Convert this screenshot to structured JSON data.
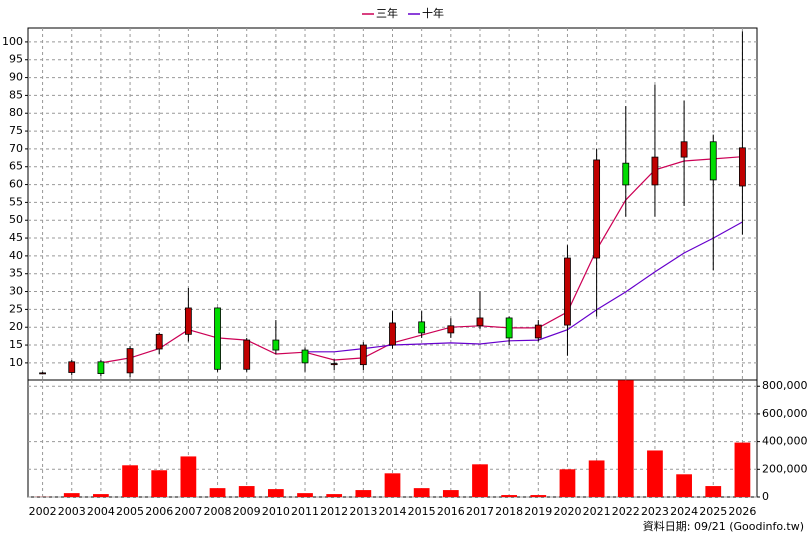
{
  "chart_data": {
    "type": "candlestick",
    "categories": [
      "2002",
      "2003",
      "2004",
      "2005",
      "2006",
      "2007",
      "2008",
      "2009",
      "2010",
      "2011",
      "2012",
      "2013",
      "2014",
      "2015",
      "2016",
      "2017",
      "2018",
      "2019",
      "2020",
      "2021",
      "2022",
      "2023",
      "2024",
      "2025",
      "2026"
    ],
    "open": [
      7,
      7.3,
      10.3,
      7.2,
      13.9,
      18,
      25.4,
      8.2,
      16.4,
      13.6,
      9.5,
      9.5,
      15,
      21.5,
      18.4,
      20.4,
      22.6,
      17,
      20.6,
      39.4,
      66,
      59.9,
      67.7,
      72,
      59.6
    ],
    "high": [
      7.5,
      10.8,
      10.8,
      14.7,
      18.5,
      31,
      25.6,
      17,
      22,
      14.3,
      11,
      15.8,
      24.5,
      24.5,
      22.5,
      30,
      23,
      22,
      43,
      70,
      82,
      88,
      83.5,
      74,
      103
    ],
    "low": [
      6.8,
      6.5,
      6.3,
      6,
      12.5,
      16,
      7.5,
      7.5,
      12.5,
      7.5,
      8,
      8,
      14,
      17,
      17,
      19.5,
      15,
      16,
      12,
      23,
      51,
      51,
      54,
      36,
      46
    ],
    "close": [
      7.2,
      10.3,
      7,
      14,
      18,
      25.4,
      8.2,
      16.4,
      13.6,
      10,
      9.8,
      15,
      21.2,
      18.4,
      20.4,
      22.6,
      17,
      20.6,
      39.4,
      66.9,
      59.9,
      67.7,
      72,
      61.3,
      70.3
    ],
    "up_color": "#c00000",
    "down_color": "#00dd00",
    "series": [
      {
        "name": "三年",
        "color": "#cc0055",
        "values": [
          null,
          null,
          10,
          11.4,
          14,
          19.3,
          17,
          16.4,
          12.5,
          13,
          10.8,
          11.4,
          15.6,
          17.8,
          20,
          20.4,
          19.8,
          19.8,
          24.3,
          41.7,
          55.7,
          64.1,
          66.6,
          67.2,
          67.8
        ]
      },
      {
        "name": "十年",
        "color": "#6600cc",
        "values": [
          null,
          null,
          null,
          null,
          null,
          null,
          null,
          null,
          null,
          13.1,
          13.1,
          14,
          15,
          15.3,
          15.6,
          15.3,
          16.2,
          16.4,
          19.3,
          24.9,
          29.9,
          35.5,
          40.8,
          45,
          49.5
        ]
      }
    ],
    "ylim": [
      5.2,
      103.9
    ],
    "yticks": [
      10,
      15,
      20,
      25,
      30,
      35,
      40,
      45,
      50,
      55,
      60,
      65,
      70,
      75,
      80,
      85,
      90,
      95,
      100
    ],
    "grid": true,
    "volume": {
      "color": "#ff0000",
      "values": [
        1000,
        28000,
        21000,
        229000,
        193000,
        293000,
        64000,
        79000,
        57000,
        28000,
        21000,
        50000,
        171000,
        64000,
        50000,
        236000,
        14000,
        14000,
        200000,
        264000,
        843000,
        336000,
        164000,
        79000,
        393000
      ],
      "ylim": [
        0,
        845000
      ],
      "yticks": [
        0,
        {
          "value": 200000,
          "label": "200,000"
        },
        {
          "value": 400000,
          "label": "400,000"
        },
        {
          "value": 600000,
          "label": "600,000"
        },
        {
          "value": 800000,
          "label": "800,000"
        }
      ]
    },
    "note": "資料日期: 09/21  (Goodinfo.tw)"
  }
}
